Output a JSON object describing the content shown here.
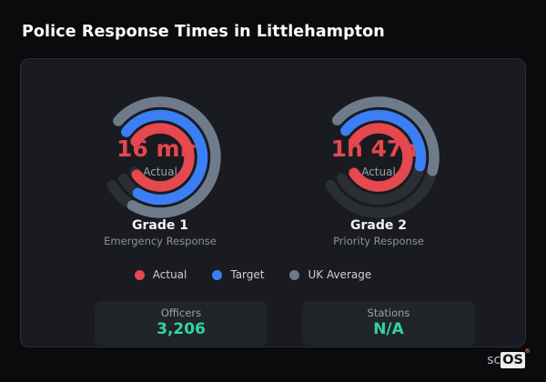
{
  "header": {
    "title": "Police Response Times in Littlehampton"
  },
  "colors": {
    "page_bg": "#0a0b0d",
    "card_bg": "#191b20",
    "card_border": "#2b2e35",
    "ring_track": "#2b2e35",
    "actual_red": "#e5484e",
    "target_blue": "#3c7ef5",
    "uk_average_slate": "#6e7b8b",
    "stat_value_mint": "#2ed5a6"
  },
  "chart_data": [
    {
      "type": "radial-gauge",
      "title": "Grade 1",
      "subtitle": "Emergency Response",
      "center_value": "16 min",
      "center_label": "Actual",
      "range_deg": {
        "start": -50,
        "end": 240
      },
      "stroke_width": 11.5,
      "rings": [
        {
          "name": "UK Average",
          "color": "#6e7b8b",
          "radius": 61,
          "start_deg": -49,
          "end_deg": 210
        },
        {
          "name": "Target",
          "color": "#3c7ef5",
          "radius": 46.5,
          "start_deg": -53,
          "end_deg": 212
        },
        {
          "name": "Actual",
          "color": "#e5484e",
          "radius": 32,
          "start_deg": -57,
          "end_deg": 233
        }
      ]
    },
    {
      "type": "radial-gauge",
      "title": "Grade 2",
      "subtitle": "Priority Response",
      "center_value": "1h 47m",
      "center_label": "Actual",
      "range_deg": {
        "start": -50,
        "end": 240
      },
      "stroke_width": 11.5,
      "rings": [
        {
          "name": "UK Average",
          "color": "#6e7b8b",
          "radius": 61,
          "start_deg": -48,
          "end_deg": 104
        },
        {
          "name": "Target",
          "color": "#3c7ef5",
          "radius": 46.5,
          "start_deg": -51,
          "end_deg": 102
        },
        {
          "name": "Actual",
          "color": "#e5484e",
          "radius": 32,
          "start_deg": -54,
          "end_deg": 237
        }
      ]
    }
  ],
  "legend": {
    "items": [
      {
        "label": "Actual",
        "color": "#e5484e"
      },
      {
        "label": "Target",
        "color": "#3c7ef5"
      },
      {
        "label": "UK Average",
        "color": "#6e7b8b"
      }
    ]
  },
  "stats": [
    {
      "label": "Officers",
      "value": "3,206"
    },
    {
      "label": "Stations",
      "value": "N/A"
    }
  ],
  "watermark": {
    "prefix": "sc",
    "brand": "OS",
    "registered": "®"
  }
}
